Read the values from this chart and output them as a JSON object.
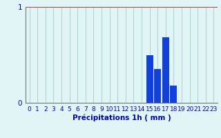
{
  "hours": [
    0,
    1,
    2,
    3,
    4,
    5,
    6,
    7,
    8,
    9,
    10,
    11,
    12,
    13,
    14,
    15,
    16,
    17,
    18,
    19,
    20,
    21,
    22,
    23
  ],
  "values": [
    0,
    0,
    0,
    0,
    0,
    0,
    0,
    0,
    0,
    0,
    0,
    0,
    0,
    0,
    0,
    0.5,
    0.35,
    0.68,
    0.18,
    0,
    0,
    0,
    0,
    0
  ],
  "bar_color": "#1040dd",
  "background_color": "#e0f5f5",
  "grid_color_x": "#aac8cc",
  "grid_color_y": "#cc3333",
  "axis_label_color": "#0000aa",
  "xlabel": "Précipitations 1h ( mm )",
  "ylim": [
    0,
    1.0
  ],
  "yticks": [
    0,
    1
  ],
  "xlabel_fontsize": 7.5,
  "tick_fontsize": 6.5
}
